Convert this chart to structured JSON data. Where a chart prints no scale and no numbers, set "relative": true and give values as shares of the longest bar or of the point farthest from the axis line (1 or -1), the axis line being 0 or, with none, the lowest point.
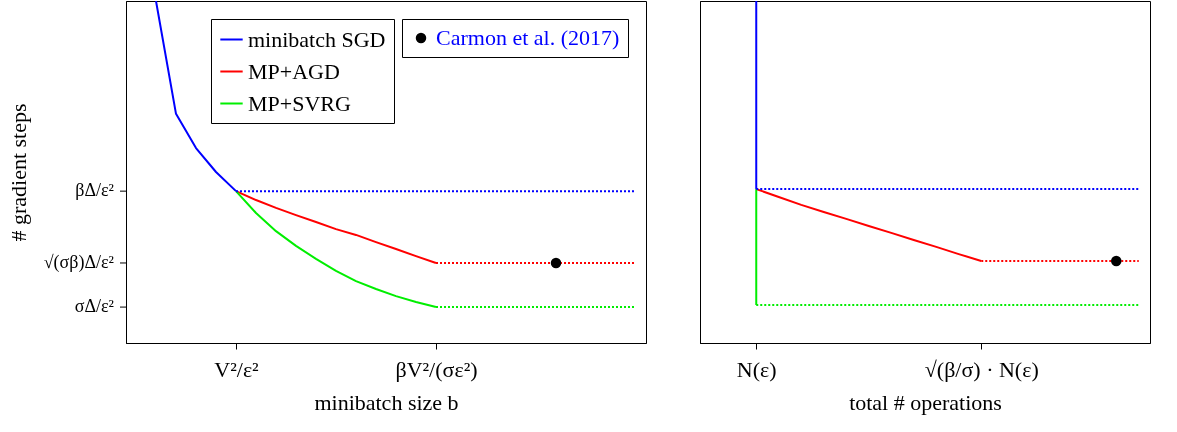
{
  "chart_data": [
    {
      "type": "line",
      "xlabel": "minibatch size b",
      "ylabel": "# gradient steps",
      "relative": true,
      "categories": [
        null,
        null,
        null,
        null,
        null,
        "V²/ε²",
        null,
        null,
        null,
        null,
        null,
        null,
        null,
        null,
        null,
        "βV²/(σε²)",
        null,
        null,
        null,
        null,
        null,
        null,
        null,
        null,
        null,
        null
      ],
      "ref_lines": [
        {
          "axis": "y",
          "value": 0.444,
          "label": "βΔ/ε²"
        },
        {
          "axis": "y",
          "value": 0.234,
          "label": "√(σβ)Δ/ε²"
        },
        {
          "axis": "y",
          "value": 0.105,
          "label": "σΔ/ε²"
        }
      ],
      "grid": false,
      "legend": "top right",
      "marker": "none",
      "series": [
        {
          "name": "minibatch SGD",
          "color": "#0000ff",
          "line_style": "solid",
          "values": [
            null,
            1.0,
            0.67,
            0.57,
            0.5,
            0.444,
            null,
            null,
            null,
            null,
            null,
            null,
            null,
            null,
            null,
            null,
            null,
            null,
            null,
            null,
            null,
            null,
            null,
            null,
            null,
            null
          ]
        },
        {
          "name": "MP+AGD",
          "color": "#ff0000",
          "line_style": "solid",
          "values": [
            null,
            null,
            null,
            null,
            null,
            0.444,
            0.418,
            0.395,
            0.374,
            0.354,
            0.333,
            0.316,
            0.295,
            0.275,
            0.254,
            0.234,
            null,
            null,
            null,
            null,
            null,
            null,
            null,
            null,
            null,
            null
          ]
        },
        {
          "name": "MP+SVRG",
          "color": "#00ee00",
          "line_style": "solid",
          "values": [
            null,
            null,
            null,
            null,
            null,
            0.444,
            0.38,
            0.327,
            0.284,
            0.246,
            0.211,
            0.181,
            0.158,
            0.137,
            0.12,
            0.105,
            null,
            null,
            null,
            null,
            null,
            null,
            null,
            null,
            null,
            null
          ]
        },
        {
          "color": "#0000ff",
          "line_style": "dotted",
          "values": [
            null,
            null,
            null,
            null,
            null,
            0.444,
            0.444,
            0.444,
            0.444,
            0.444,
            0.444,
            0.444,
            0.444,
            0.444,
            0.444,
            0.444,
            0.444,
            0.444,
            0.444,
            0.444,
            0.444,
            0.444,
            0.444,
            0.444,
            0.444,
            0.444
          ]
        },
        {
          "color": "#ff0000",
          "line_style": "dotted",
          "values": [
            null,
            null,
            null,
            null,
            null,
            null,
            null,
            null,
            null,
            null,
            null,
            null,
            null,
            null,
            null,
            0.234,
            0.234,
            0.234,
            0.234,
            0.234,
            0.234,
            0.234,
            0.234,
            0.234,
            0.234,
            0.234
          ]
        },
        {
          "color": "#00ee00",
          "line_style": "dotted",
          "values": [
            null,
            null,
            null,
            null,
            null,
            null,
            null,
            null,
            null,
            null,
            null,
            null,
            null,
            null,
            null,
            0.105,
            0.105,
            0.105,
            0.105,
            0.105,
            0.105,
            0.105,
            0.105,
            0.105,
            0.105,
            0.105
          ]
        },
        {
          "type": "scatter",
          "name": "Carmon et al. (2017)",
          "color": "#000000",
          "marker": "circle",
          "values": [
            null,
            null,
            null,
            null,
            null,
            null,
            null,
            null,
            null,
            null,
            null,
            null,
            null,
            null,
            null,
            null,
            null,
            null,
            null,
            null,
            null,
            0.234,
            null,
            null,
            null,
            null
          ]
        }
      ]
    },
    {
      "type": "line",
      "xlabel": "total # operations",
      "relative": true,
      "categories": [
        null,
        null,
        "N(ε)",
        null,
        null,
        null,
        null,
        null,
        null,
        null,
        null,
        null,
        "√(β/σ) · N(ε)",
        null,
        null,
        null,
        null,
        null,
        null,
        null
      ],
      "grid": false,
      "marker": "none",
      "series": [
        {
          "color": "#0000ff",
          "line_style": "solid",
          "x": [
            "N(ε)",
            "N(ε)"
          ],
          "values": [
            1.0,
            0.45
          ]
        },
        {
          "color": "#ff0000",
          "line_style": "solid",
          "values": [
            null,
            null,
            0.45,
            0.427,
            0.404,
            0.383,
            0.363,
            0.342,
            0.322,
            0.301,
            0.281,
            0.26,
            0.24,
            null,
            null,
            null,
            null,
            null,
            null,
            null
          ]
        },
        {
          "color": "#00ee00",
          "line_style": "solid",
          "x": [
            "N(ε)",
            "N(ε)"
          ],
          "values": [
            0.45,
            0.111
          ]
        },
        {
          "color": "#0000ff",
          "line_style": "dotted",
          "values": [
            null,
            null,
            0.45,
            0.45,
            0.45,
            0.45,
            0.45,
            0.45,
            0.45,
            0.45,
            0.45,
            0.45,
            0.45,
            0.45,
            0.45,
            0.45,
            0.45,
            0.45,
            0.45,
            0.45
          ]
        },
        {
          "color": "#ff0000",
          "line_style": "dotted",
          "values": [
            null,
            null,
            null,
            null,
            null,
            null,
            null,
            null,
            null,
            null,
            null,
            null,
            0.24,
            0.24,
            0.24,
            0.24,
            0.24,
            0.24,
            0.24,
            0.24
          ]
        },
        {
          "color": "#00ee00",
          "line_style": "dotted",
          "values": [
            null,
            null,
            0.111,
            0.111,
            0.111,
            0.111,
            0.111,
            0.111,
            0.111,
            0.111,
            0.111,
            0.111,
            0.111,
            0.111,
            0.111,
            0.111,
            0.111,
            0.111,
            0.111,
            0.111
          ]
        },
        {
          "type": "scatter",
          "color": "#000000",
          "marker": "circle",
          "values": [
            null,
            null,
            null,
            null,
            null,
            null,
            null,
            null,
            null,
            null,
            null,
            null,
            null,
            null,
            null,
            null,
            null,
            null,
            0.24,
            null
          ]
        }
      ]
    }
  ]
}
